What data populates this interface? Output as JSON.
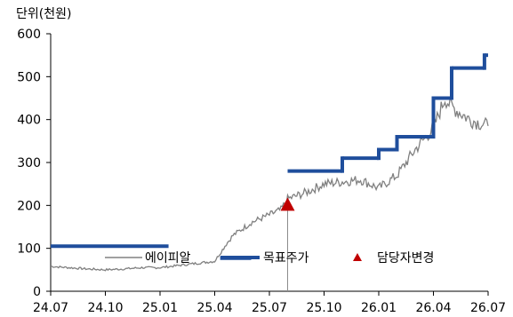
{
  "unit_label": "단위(천원)",
  "chart_data": {
    "type": "line",
    "title": "",
    "xlabel": "",
    "ylabel": "",
    "ylim": [
      0,
      600
    ],
    "y_ticks": [
      0,
      100,
      200,
      300,
      400,
      500,
      600
    ],
    "x_ticks": [
      "24.07",
      "24.10",
      "25.01",
      "25.04",
      "25.07",
      "25.10",
      "26.01",
      "26.04",
      "26.07"
    ],
    "x_range": [
      "24.07",
      "26.07"
    ],
    "grid": false,
    "legend_position": "bottom",
    "colors": {
      "price": "#808080",
      "target": "#1f4e9c",
      "change": "#c00000"
    },
    "series": [
      {
        "name": "에이피알",
        "style": "thin-gray-line",
        "points": [
          [
            "24.07",
            58
          ],
          [
            "24.08",
            55
          ],
          [
            "24.09",
            52
          ],
          [
            "24.10",
            50
          ],
          [
            "24.11",
            52
          ],
          [
            "24.12",
            55
          ],
          [
            "25.01",
            55
          ],
          [
            "25.02",
            60
          ],
          [
            "25.03",
            65
          ],
          [
            "25.04",
            70
          ],
          [
            "25.04.20",
            110
          ],
          [
            "25.05",
            130
          ],
          [
            "25.06",
            160
          ],
          [
            "25.07",
            178
          ],
          [
            "25.07.20",
            190
          ],
          [
            "25.08",
            215
          ],
          [
            "25.09",
            230
          ],
          [
            "25.10",
            250
          ],
          [
            "25.11",
            255
          ],
          [
            "25.12",
            260
          ],
          [
            "26.01",
            240
          ],
          [
            "26.02",
            270
          ],
          [
            "26.03",
            330
          ],
          [
            "26.04",
            380
          ],
          [
            "26.04.20",
            450
          ],
          [
            "26.05",
            430
          ],
          [
            "26.06",
            400
          ],
          [
            "26.07",
            385
          ]
        ]
      },
      {
        "name": "목표주가",
        "style": "thick-blue-step",
        "segments": [
          {
            "from": "24.07",
            "to": "25.01.15",
            "value": 105
          },
          {
            "from": "25.04.10",
            "to": "25.06",
            "value": 77
          },
          {
            "from": "25.08",
            "to": "25.11",
            "value": 280
          },
          {
            "from": "25.11",
            "to": "26.01",
            "value": 310
          },
          {
            "from": "26.01",
            "to": "26.02",
            "value": 330
          },
          {
            "from": "26.02",
            "to": "26.04",
            "value": 360
          },
          {
            "from": "26.04",
            "to": "26.05",
            "value": 450
          },
          {
            "from": "26.05",
            "to": "26.06.25",
            "value": 520
          },
          {
            "from": "26.06.25",
            "to": "26.07",
            "value": 550
          }
        ]
      },
      {
        "name": "담당자변경",
        "style": "red-triangle-marker",
        "points": [
          [
            "25.08",
            200
          ]
        ]
      }
    ]
  }
}
